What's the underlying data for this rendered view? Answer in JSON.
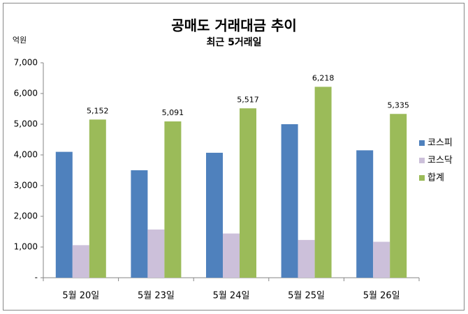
{
  "chart_data": {
    "type": "bar",
    "title": "공매도 거래대금 추이",
    "subtitle": "최근 5거래일",
    "y_unit": "억원",
    "categories": [
      "5월 20일",
      "5월 23일",
      "5월 24일",
      "5월 25일",
      "5월 26일"
    ],
    "series": [
      {
        "name": "코스피",
        "color": "#4f81bd",
        "values": [
          4100,
          3500,
          4070,
          5000,
          4150
        ]
      },
      {
        "name": "코스닥",
        "color": "#ccc0da",
        "values": [
          1060,
          1570,
          1440,
          1230,
          1170
        ]
      },
      {
        "name": "합계",
        "color": "#9bbb59",
        "values": [
          5152,
          5091,
          5517,
          6218,
          5335
        ],
        "value_labels": [
          "5,152",
          "5,091",
          "5,517",
          "6,218",
          "5,335"
        ]
      }
    ],
    "ylim": [
      0,
      7000
    ],
    "yticks": [
      {
        "value": 0,
        "label": "-"
      },
      {
        "value": 1000,
        "label": "1,000"
      },
      {
        "value": 2000,
        "label": "2,000"
      },
      {
        "value": 3000,
        "label": "3,000"
      },
      {
        "value": 4000,
        "label": "4,000"
      },
      {
        "value": 5000,
        "label": "5,000"
      },
      {
        "value": 6000,
        "label": "6,000"
      },
      {
        "value": 7000,
        "label": "7,000"
      }
    ],
    "grid": false,
    "legend": "right"
  }
}
